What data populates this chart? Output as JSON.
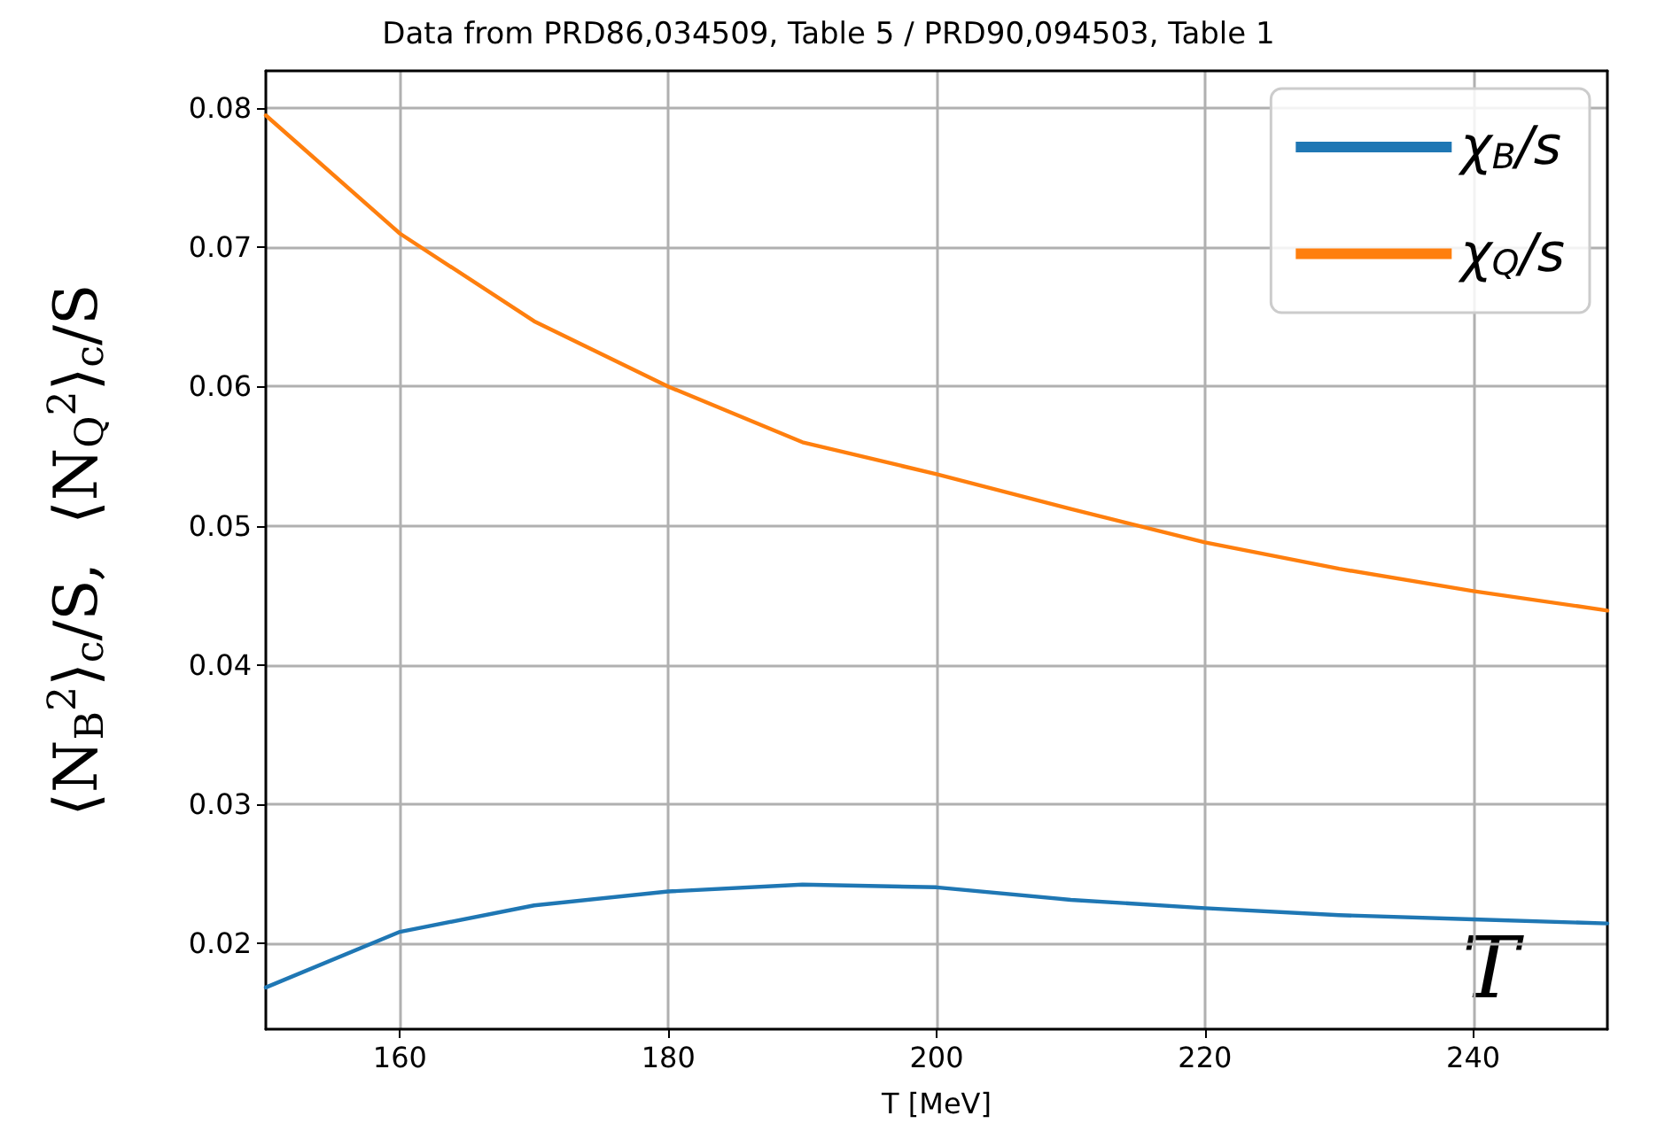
{
  "chart_data": {
    "type": "line",
    "title": "Data from PRD86,034509, Table 5 / PRD90,094503, Table 1",
    "xlabel": "T [MeV]",
    "ylabel": "⟨N$_{B}$$^{2}$⟩$_{c}$/S,  ⟨N$_{Q}$$^{2}$⟩$_{c}$/S",
    "annotations": [
      "T"
    ],
    "x": [
      150,
      160,
      170,
      180,
      190,
      200,
      210,
      220,
      230,
      240,
      250
    ],
    "series": [
      {
        "name": "χ$_{B}$/s",
        "color": "#1f77b4",
        "values": [
          0.0168,
          0.0208,
          0.0227,
          0.0237,
          0.0242,
          0.024,
          0.0231,
          0.0225,
          0.022,
          0.0217,
          0.0214
        ]
      },
      {
        "name": "χ$_{Q}$/s",
        "color": "#ff7f0e",
        "values": [
          0.0795,
          0.071,
          0.0647,
          0.06,
          0.056,
          0.0537,
          0.0512,
          0.0488,
          0.0469,
          0.0453,
          0.0439
        ]
      }
    ],
    "xlim": [
      150,
      250
    ],
    "xticks": [
      160,
      180,
      200,
      220,
      240
    ],
    "ylim": [
      0.0138,
      0.0827
    ],
    "yticks": [
      0.02,
      0.03,
      0.04,
      0.05,
      0.06,
      0.07,
      0.08
    ],
    "grid": true,
    "legend": "top right",
    "marker": "none",
    "line_style": "solid"
  }
}
